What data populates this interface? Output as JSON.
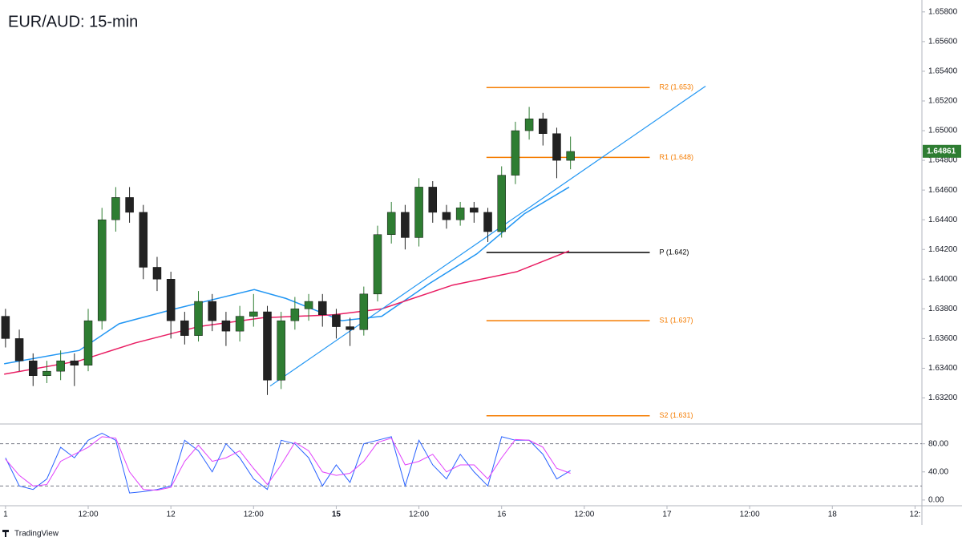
{
  "chart_data": {
    "type": "candlestick",
    "title": "EUR/AUD: 15-min",
    "footer": "TradingView",
    "xlim": [
      -0.8,
      133
    ],
    "xticks": [
      {
        "value": 0,
        "label": "1"
      },
      {
        "value": 12,
        "label": "12:00"
      },
      {
        "value": 24,
        "label": "12"
      },
      {
        "value": 36,
        "label": "12:00"
      },
      {
        "value": 48,
        "label": "15"
      },
      {
        "value": 60,
        "label": "12:00"
      },
      {
        "value": 72,
        "label": "16"
      },
      {
        "value": 84,
        "label": "12:00"
      },
      {
        "value": 96,
        "label": "17"
      },
      {
        "value": 108,
        "label": "12:00"
      },
      {
        "value": 120,
        "label": "18"
      },
      {
        "value": 132,
        "label": "12:"
      }
    ],
    "ylim": [
      1.6303,
      1.6588
    ],
    "yticks": [
      {
        "value": 1.632,
        "label": "1.63200"
      },
      {
        "value": 1.634,
        "label": "1.63400"
      },
      {
        "value": 1.636,
        "label": "1.63600"
      },
      {
        "value": 1.638,
        "label": "1.63800"
      },
      {
        "value": 1.64,
        "label": "1.64000"
      },
      {
        "value": 1.642,
        "label": "1.64200"
      },
      {
        "value": 1.644,
        "label": "1.64400"
      },
      {
        "value": 1.646,
        "label": "1.64600"
      },
      {
        "value": 1.648,
        "label": "1.64800"
      },
      {
        "value": 1.65,
        "label": "1.65000"
      },
      {
        "value": 1.652,
        "label": "1.65200"
      },
      {
        "value": 1.654,
        "label": "1.65400"
      },
      {
        "value": 1.656,
        "label": "1.65600"
      },
      {
        "value": 1.658,
        "label": "1.65800"
      }
    ],
    "up_color": "#2e7d32",
    "down_color": "#222222",
    "x": [
      0,
      2,
      4,
      6,
      8,
      10,
      12,
      14,
      16,
      18,
      20,
      22,
      24,
      26,
      28,
      30,
      32,
      34,
      36,
      38,
      40,
      42,
      44,
      46,
      48,
      50,
      52,
      54,
      56,
      58,
      60,
      62,
      64,
      66,
      68,
      70,
      72,
      74,
      76,
      78,
      80,
      82
    ],
    "open": [
      1.6375,
      1.636,
      1.6345,
      1.6335,
      1.6338,
      1.6345,
      1.6342,
      1.6372,
      1.644,
      1.6455,
      1.6445,
      1.6408,
      1.64,
      1.6372,
      1.6362,
      1.6385,
      1.6372,
      1.6365,
      1.6375,
      1.6378,
      1.6332,
      1.6372,
      1.638,
      1.6385,
      1.6376,
      1.6368,
      1.6366,
      1.639,
      1.643,
      1.6445,
      1.6428,
      1.6462,
      1.6445,
      1.644,
      1.6448,
      1.6445,
      1.6432,
      1.647,
      1.65,
      1.6508,
      1.6498,
      1.648
    ],
    "high": [
      1.638,
      1.6366,
      1.635,
      1.6345,
      1.6352,
      1.635,
      1.638,
      1.6448,
      1.6462,
      1.6462,
      1.645,
      1.6415,
      1.6405,
      1.6378,
      1.6392,
      1.639,
      1.6378,
      1.6382,
      1.639,
      1.6382,
      1.6378,
      1.6388,
      1.639,
      1.639,
      1.638,
      1.6374,
      1.6395,
      1.6436,
      1.6452,
      1.645,
      1.6468,
      1.6466,
      1.645,
      1.6452,
      1.6452,
      1.6448,
      1.6476,
      1.6506,
      1.6516,
      1.6512,
      1.6502,
      1.6496
    ],
    "low": [
      1.6354,
      1.6338,
      1.6328,
      1.633,
      1.6332,
      1.6328,
      1.6338,
      1.6366,
      1.6432,
      1.6438,
      1.64,
      1.6392,
      1.636,
      1.6356,
      1.6358,
      1.6365,
      1.6355,
      1.6358,
      1.6368,
      1.6322,
      1.6326,
      1.6366,
      1.6372,
      1.6368,
      1.636,
      1.6355,
      1.6362,
      1.6385,
      1.6424,
      1.642,
      1.6422,
      1.6438,
      1.6434,
      1.6436,
      1.6438,
      1.6425,
      1.6428,
      1.6464,
      1.6494,
      1.649,
      1.6468,
      1.6474
    ],
    "close": [
      1.636,
      1.6345,
      1.6335,
      1.6338,
      1.6345,
      1.6342,
      1.6372,
      1.644,
      1.6455,
      1.6445,
      1.6408,
      1.64,
      1.6372,
      1.6362,
      1.6385,
      1.6372,
      1.6365,
      1.6375,
      1.6378,
      1.6332,
      1.6372,
      1.638,
      1.6385,
      1.6376,
      1.6368,
      1.6366,
      1.639,
      1.643,
      1.6445,
      1.6428,
      1.6462,
      1.6445,
      1.644,
      1.6448,
      1.6445,
      1.6432,
      1.647,
      1.65,
      1.6508,
      1.6498,
      1.648,
      1.6486
    ],
    "series": [
      {
        "color": "#2196f3",
        "x": [
          -0.2,
          10.7,
          16.5,
          24.6,
          36.1,
          40.7,
          48.8,
          54.6,
          61.5,
          68.4,
          75.3,
          81.8
        ],
        "values": [
          1.6343,
          1.6352,
          1.637,
          1.638,
          1.6393,
          1.6387,
          1.6372,
          1.6375,
          1.6397,
          1.6417,
          1.6444,
          1.6462
        ]
      },
      {
        "color": "#e91e63",
        "x": [
          -0.2,
          10.7,
          18.8,
          28,
          37.3,
          47.6,
          54.6,
          64.9,
          74.2,
          81.8
        ],
        "values": [
          1.6336,
          1.6345,
          1.6357,
          1.6368,
          1.6374,
          1.6376,
          1.638,
          1.6396,
          1.6405,
          1.6419
        ]
      }
    ],
    "trendline": {
      "color": "#2196f3",
      "x": [
        38.4,
        101.6
      ],
      "values": [
        1.6328,
        1.653
      ]
    },
    "levels": [
      {
        "name": "R2",
        "value": 1.6529,
        "value_label": "R2 (1.653)",
        "color": "#f57c00"
      },
      {
        "name": "R1",
        "value": 1.6482,
        "value_label": "R1 (1.648)",
        "color": "#f57c00"
      },
      {
        "name": "P",
        "value": 1.6418,
        "value_label": "P (1.642)",
        "color": "#000000"
      },
      {
        "name": "S1",
        "value": 1.6372,
        "value_label": "S1 (1.637)",
        "color": "#f57c00"
      },
      {
        "name": "S2",
        "value": 1.6308,
        "value_label": "S2 (1.631)",
        "color": "#f57c00"
      }
    ],
    "levels_x": [
      69.8,
      93.5
    ],
    "last_price": {
      "value": 1.64861,
      "label": "1.64861"
    },
    "last_price_color": "#2e7d32",
    "indicator": {
      "type": "line",
      "ylim": [
        -7,
        107
      ],
      "yticks": [
        {
          "value": 0,
          "label": "0.00"
        },
        {
          "value": 40,
          "label": "40.00"
        },
        {
          "value": 80,
          "label": "80.00"
        }
      ],
      "bands": [
        20,
        80
      ],
      "series": [
        {
          "color": "#2962ff",
          "values": [
            60,
            20,
            15,
            30,
            75,
            60,
            85,
            95,
            85,
            10,
            12,
            15,
            20,
            85,
            70,
            40,
            80,
            60,
            30,
            15,
            85,
            80,
            60,
            20,
            50,
            25,
            80,
            85,
            90,
            20,
            85,
            50,
            30,
            65,
            40,
            20,
            90,
            85,
            85,
            65,
            30,
            42
          ]
        },
        {
          "color": "#e040fb",
          "values": [
            58,
            35,
            20,
            22,
            55,
            65,
            75,
            90,
            88,
            40,
            15,
            14,
            18,
            55,
            78,
            55,
            60,
            70,
            45,
            22,
            50,
            82,
            70,
            40,
            35,
            38,
            55,
            82,
            88,
            50,
            55,
            65,
            40,
            50,
            50,
            30,
            60,
            86,
            85,
            75,
            45,
            38
          ]
        }
      ]
    }
  }
}
